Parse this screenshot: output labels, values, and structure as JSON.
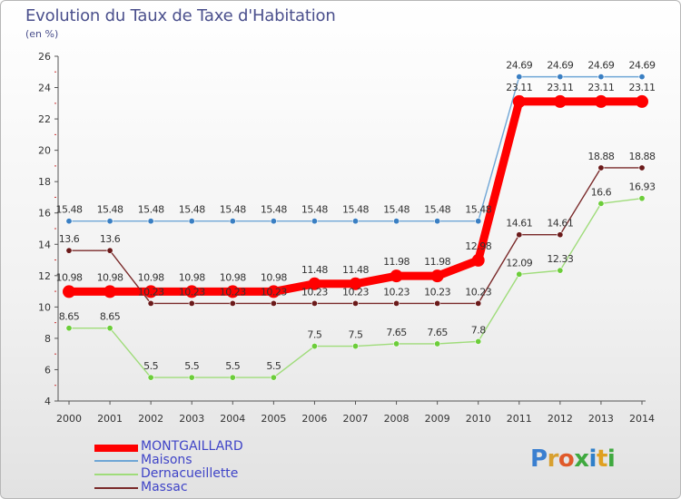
{
  "title": "Evolution du Taux de Taxe d'Habitation",
  "subtitle": "(en %)",
  "logo": "Proxiti",
  "colors": {
    "axis_text": "#333333",
    "title": "#4a4f8c",
    "legend_text": "#3f44c7",
    "logo_P": "#3a7fd0",
    "logo_r": "#d8a030",
    "logo_o": "#e05a2a",
    "logo_x": "#3fa93f",
    "logo_i": "#2f7fc9",
    "logo_t": "#e0a020",
    "logo_i2": "#3fa93f"
  },
  "chart_data": {
    "type": "line",
    "x": [
      "2000",
      "2001",
      "2002",
      "2003",
      "2004",
      "2005",
      "2006",
      "2007",
      "2008",
      "2009",
      "2010",
      "2011",
      "2012",
      "2013",
      "2014"
    ],
    "ylim": [
      4,
      26
    ],
    "yticks": [
      4,
      6,
      8,
      10,
      12,
      14,
      16,
      18,
      20,
      22,
      24,
      26
    ],
    "grid": false,
    "legend_position": "bottom-left",
    "series": [
      {
        "name": "MONTGAILLARD",
        "color": "#ff0000",
        "dot_color": "#ff0000",
        "line_width": 9,
        "dot_radius": 7,
        "values": [
          10.98,
          10.98,
          10.98,
          10.98,
          10.98,
          10.98,
          11.48,
          11.48,
          11.98,
          11.98,
          12.98,
          23.11,
          23.11,
          23.11,
          23.11
        ],
        "labels": [
          "10.98",
          "10.98",
          "10.98",
          "10.98",
          "10.98",
          "10.98",
          "11.48",
          "11.48",
          "11.98",
          "11.98",
          "12.98",
          "23.11",
          "23.11",
          "23.11",
          "23.11"
        ]
      },
      {
        "name": "Maisons",
        "color": "#6fa6d6",
        "dot_color": "#3a7fc3",
        "line_width": 1.4,
        "dot_radius": 3.2,
        "values": [
          15.48,
          15.48,
          15.48,
          15.48,
          15.48,
          15.48,
          15.48,
          15.48,
          15.48,
          15.48,
          15.48,
          24.69,
          24.69,
          24.69,
          24.69
        ],
        "labels": [
          "15.48",
          "15.48",
          "15.48",
          "15.48",
          "15.48",
          "15.48",
          "15.48",
          "15.48",
          "15.48",
          "15.48",
          "15.48",
          "24.69",
          "24.69",
          "24.69",
          "24.69"
        ]
      },
      {
        "name": "Dernacueillette",
        "color": "#9fdc7a",
        "dot_color": "#6ccd3a",
        "line_width": 1.4,
        "dot_radius": 3.2,
        "values": [
          8.65,
          8.65,
          5.5,
          5.5,
          5.5,
          5.5,
          7.5,
          7.5,
          7.65,
          7.65,
          7.8,
          12.09,
          12.33,
          16.6,
          16.93
        ],
        "labels": [
          "8.65",
          "8.65",
          "5.5",
          "5.5",
          "5.5",
          "5.5",
          "7.5",
          "7.5",
          "7.65",
          "7.65",
          "7.8",
          "12.09",
          "12.33",
          "16.6",
          "16.93"
        ]
      },
      {
        "name": "Massac",
        "color": "#7a2a2a",
        "dot_color": "#6b1a1a",
        "line_width": 1.4,
        "dot_radius": 3.2,
        "values": [
          13.6,
          13.6,
          10.23,
          10.23,
          10.23,
          10.23,
          10.23,
          10.23,
          10.23,
          10.23,
          10.23,
          14.61,
          14.61,
          18.88,
          18.88
        ],
        "labels": [
          "13.6",
          "13.6",
          "10.23",
          "10.23",
          "10.23",
          "10.23",
          "10.23",
          "10.23",
          "10.23",
          "10.23",
          "10.23",
          "14.61",
          "14.61",
          "18.88",
          "18.88"
        ]
      }
    ]
  }
}
